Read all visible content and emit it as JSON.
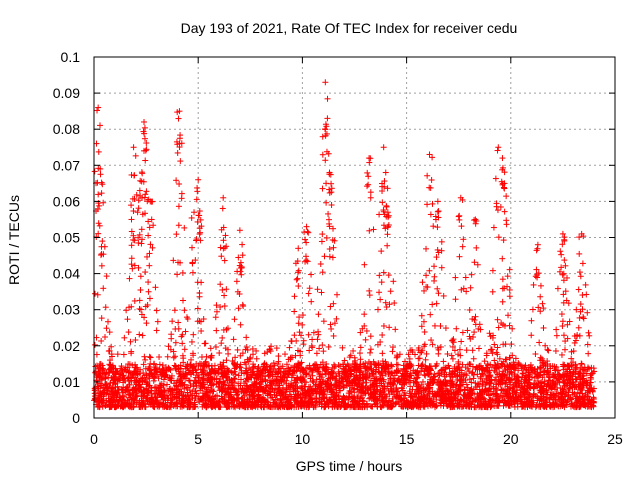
{
  "chart_data": {
    "type": "scatter",
    "title": "Day 193 of 2021, Rate Of TEC Index for receiver cedu",
    "xlabel": "GPS time / hours",
    "ylabel": "ROTI / TECUs",
    "xlim": [
      0,
      25
    ],
    "ylim": [
      0,
      0.1
    ],
    "xticks": [
      "0",
      "5",
      "10",
      "15",
      "20",
      "25"
    ],
    "yticks": [
      "0",
      "0.01",
      "0.02",
      "0.03",
      "0.04",
      "0.05",
      "0.06",
      "0.07",
      "0.08",
      "0.09",
      "0.1"
    ],
    "grid": true,
    "marker": "plus",
    "color": "#ff0000",
    "x_data_range": [
      0,
      24
    ],
    "y_baseline_range": [
      0.003,
      0.015
    ],
    "peaks": [
      {
        "x": 0.2,
        "y": 0.086
      },
      {
        "x": 0.3,
        "y": 0.069
      },
      {
        "x": 0.4,
        "y": 0.049
      },
      {
        "x": 1.8,
        "y": 0.055
      },
      {
        "x": 1.9,
        "y": 0.075
      },
      {
        "x": 2.2,
        "y": 0.063
      },
      {
        "x": 2.4,
        "y": 0.082
      },
      {
        "x": 2.4,
        "y": 0.074
      },
      {
        "x": 2.7,
        "y": 0.06
      },
      {
        "x": 4.1,
        "y": 0.085
      },
      {
        "x": 4.1,
        "y": 0.076
      },
      {
        "x": 4.8,
        "y": 0.057
      },
      {
        "x": 5.0,
        "y": 0.066
      },
      {
        "x": 6.2,
        "y": 0.061
      },
      {
        "x": 7.0,
        "y": 0.052
      },
      {
        "x": 9.8,
        "y": 0.047
      },
      {
        "x": 10.2,
        "y": 0.053
      },
      {
        "x": 11.1,
        "y": 0.093
      },
      {
        "x": 11.2,
        "y": 0.083
      },
      {
        "x": 11.3,
        "y": 0.068
      },
      {
        "x": 11.4,
        "y": 0.059
      },
      {
        "x": 13.2,
        "y": 0.072
      },
      {
        "x": 13.9,
        "y": 0.075
      },
      {
        "x": 14.0,
        "y": 0.068
      },
      {
        "x": 14.1,
        "y": 0.057
      },
      {
        "x": 16.1,
        "y": 0.073
      },
      {
        "x": 16.5,
        "y": 0.06
      },
      {
        "x": 17.6,
        "y": 0.061
      },
      {
        "x": 18.3,
        "y": 0.055
      },
      {
        "x": 19.4,
        "y": 0.075
      },
      {
        "x": 19.6,
        "y": 0.072
      },
      {
        "x": 19.7,
        "y": 0.065
      },
      {
        "x": 21.3,
        "y": 0.048
      },
      {
        "x": 22.5,
        "y": 0.051
      },
      {
        "x": 23.4,
        "y": 0.051
      }
    ]
  }
}
